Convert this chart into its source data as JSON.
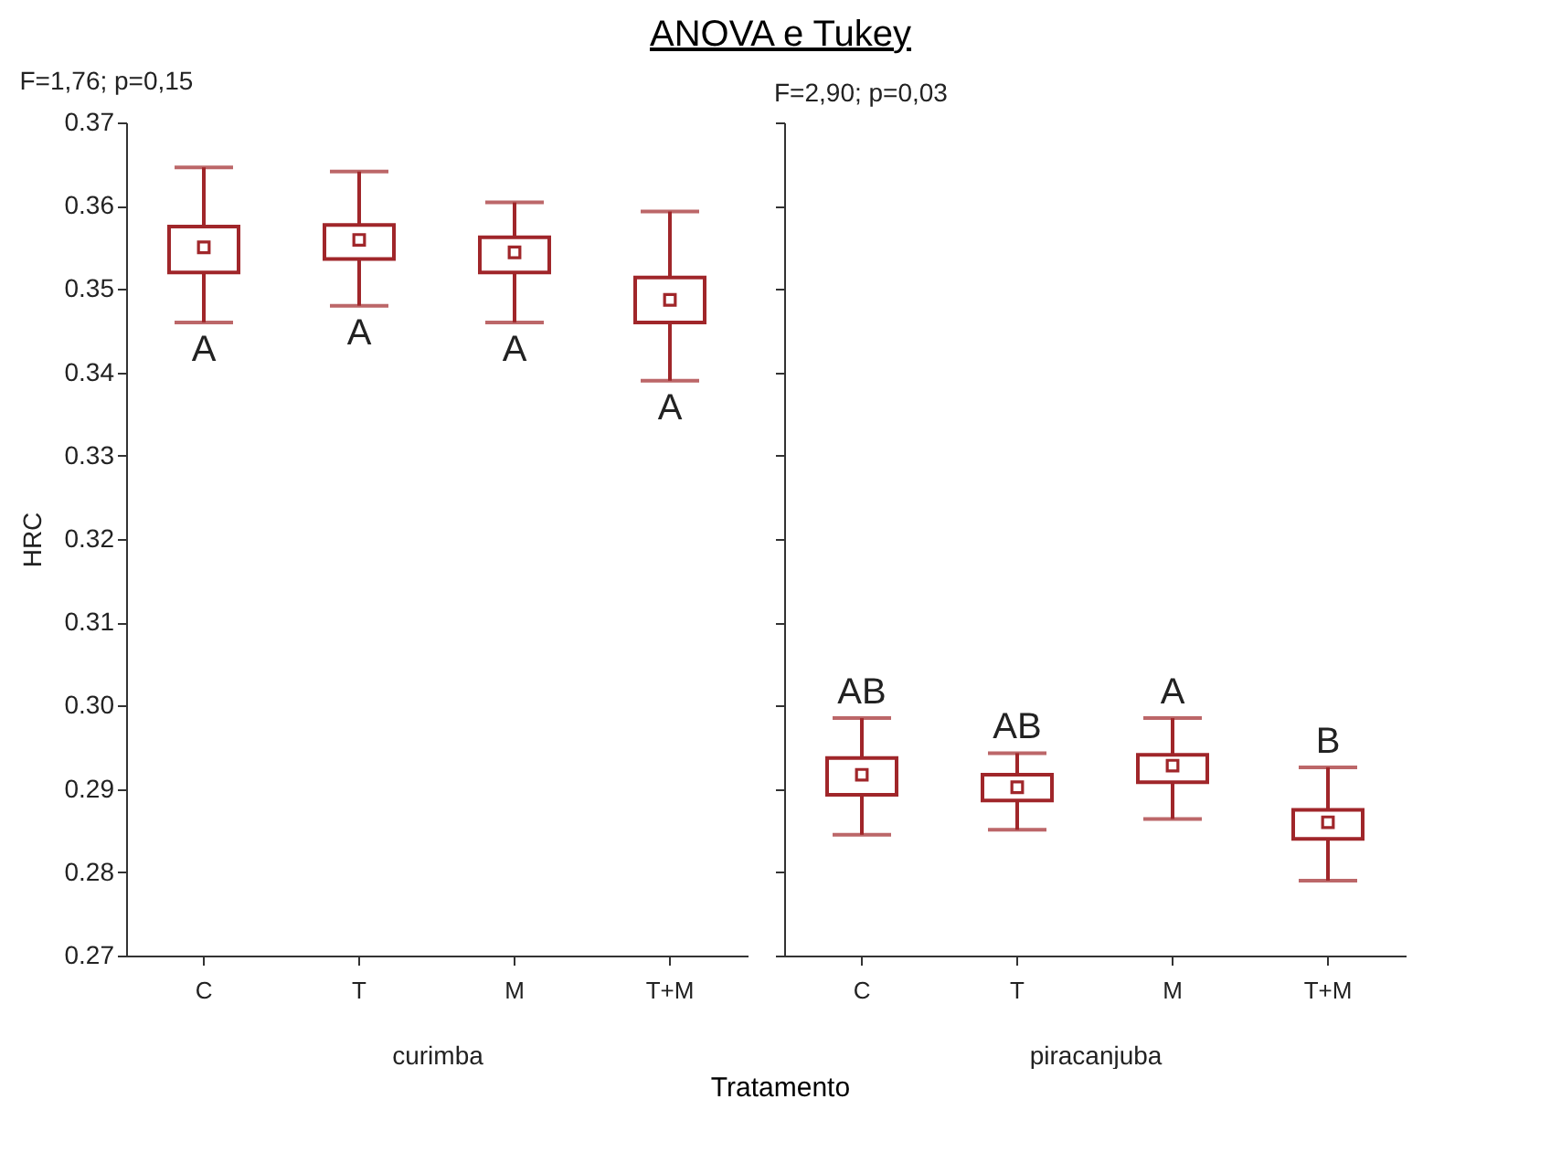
{
  "chart_data": [
    {
      "type": "box",
      "title": "ANOVA e Tukey",
      "xlabel": "curimba",
      "ylabel": "HRC",
      "color": "#a0262a",
      "categories": [
        "C",
        "T",
        "M",
        "T+M"
      ],
      "boxes": [
        {
          "low": 0.346,
          "q1": 0.352,
          "median": 0.355,
          "q3": 0.3575,
          "high": 0.3646
        },
        {
          "low": 0.348,
          "q1": 0.3536,
          "median": 0.3559,
          "q3": 0.3577,
          "high": 0.3641
        },
        {
          "low": 0.346,
          "q1": 0.352,
          "median": 0.3544,
          "q3": 0.3562,
          "high": 0.3604
        },
        {
          "low": 0.339,
          "q1": 0.346,
          "median": 0.3487,
          "q3": 0.3514,
          "high": 0.3593
        }
      ],
      "ylim": [
        0.27,
        0.37
      ],
      "yticks": [
        {
          "value": 0.27,
          "label": "0.27"
        },
        {
          "value": 0.28,
          "label": "0.28"
        },
        {
          "value": 0.29,
          "label": "0.29"
        },
        {
          "value": 0.3,
          "label": "0.30"
        },
        {
          "value": 0.31,
          "label": "0.31"
        },
        {
          "value": 0.32,
          "label": "0.32"
        },
        {
          "value": 0.33,
          "label": "0.33"
        },
        {
          "value": 0.34,
          "label": "0.34"
        },
        {
          "value": 0.35,
          "label": "0.35"
        },
        {
          "value": 0.36,
          "label": "0.36"
        },
        {
          "value": 0.37,
          "label": "0.37"
        }
      ],
      "annotations": [
        "F=1,76; p=0,15",
        "Tratamento",
        {
          "text": "A",
          "x": "C",
          "y": 0.346
        },
        {
          "text": "A",
          "x": "T",
          "y": 0.348
        },
        {
          "text": "A",
          "x": "M",
          "y": 0.346
        },
        {
          "text": "A",
          "x": "T+M",
          "y": 0.339
        }
      ]
    },
    {
      "type": "box",
      "xlabel": "piracanjuba",
      "color": "#a0262a",
      "categories": [
        "C",
        "T",
        "M",
        "T+M"
      ],
      "tick_labels": "x",
      "boxes": [
        {
          "low": 0.2845,
          "q1": 0.2893,
          "median": 0.2917,
          "q3": 0.2937,
          "high": 0.2985
        },
        {
          "low": 0.2851,
          "q1": 0.2886,
          "median": 0.2902,
          "q3": 0.2917,
          "high": 0.2943
        },
        {
          "low": 0.2864,
          "q1": 0.2908,
          "median": 0.2928,
          "q3": 0.2941,
          "high": 0.2985
        },
        {
          "low": 0.279,
          "q1": 0.284,
          "median": 0.286,
          "q3": 0.2875,
          "high": 0.2926
        }
      ],
      "ylim": [
        0.27,
        0.37
      ],
      "yticks": [
        0.27,
        0.28,
        0.29,
        0.3,
        0.31,
        0.32,
        0.33,
        0.34,
        0.35,
        0.36,
        0.37
      ],
      "annotations": [
        "F=2,90; p=0,03",
        {
          "text": "AB",
          "x": "C",
          "y": 0.2985
        },
        {
          "text": "AB",
          "x": "T",
          "y": 0.2943
        },
        {
          "text": "A",
          "x": "M",
          "y": 0.2985
        },
        {
          "text": "B",
          "x": "T+M",
          "y": 0.2926
        }
      ]
    }
  ]
}
